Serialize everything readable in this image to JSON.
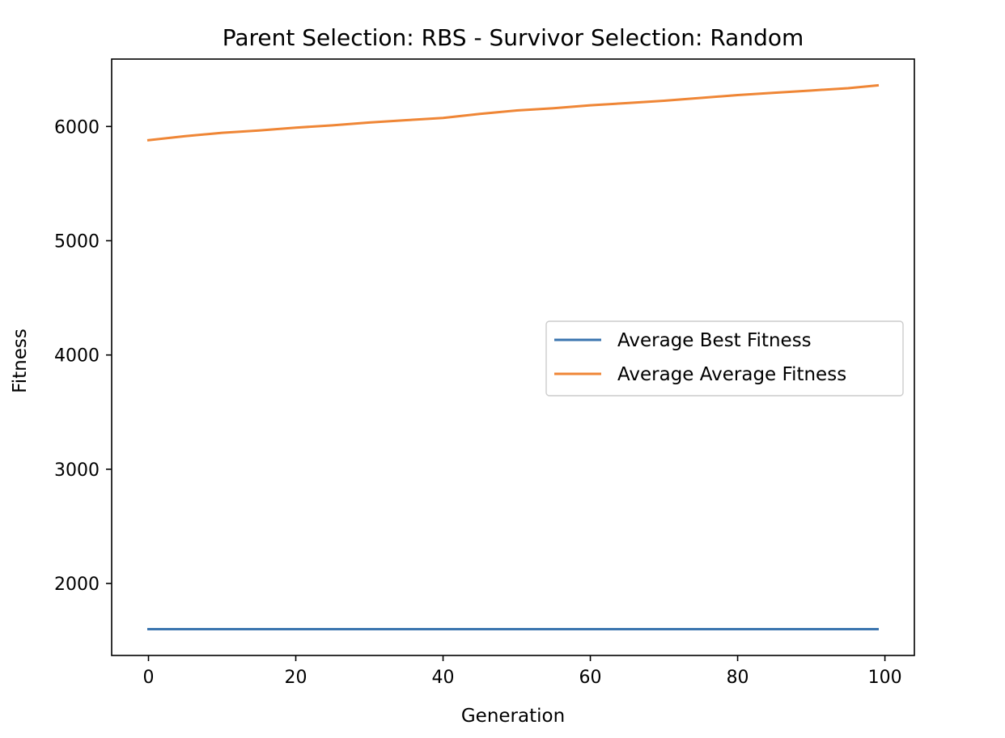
{
  "chart_data": {
    "type": "line",
    "title": "Parent Selection: RBS - Survivor Selection: Random",
    "xlabel": "Generation",
    "ylabel": "Fitness",
    "xlim": [
      -5,
      104
    ],
    "ylim": [
      1370,
      6590
    ],
    "xticks": [
      0,
      20,
      40,
      60,
      80,
      100
    ],
    "yticks": [
      2000,
      3000,
      4000,
      5000,
      6000
    ],
    "xtick_labels": [
      "0",
      "20",
      "40",
      "60",
      "80",
      "100"
    ],
    "ytick_labels": [
      "2000",
      "3000",
      "4000",
      "5000",
      "6000"
    ],
    "grid": false,
    "legend_position": "center-right",
    "series": [
      {
        "name": "Average Best Fitness",
        "color": "#3b75af",
        "x": [
          0,
          99
        ],
        "y": [
          1600,
          1600
        ]
      },
      {
        "name": "Average Average Fitness",
        "color": "#ef8636",
        "x": [
          0,
          5,
          10,
          15,
          20,
          25,
          30,
          35,
          40,
          45,
          50,
          55,
          60,
          65,
          70,
          75,
          80,
          85,
          90,
          95,
          99
        ],
        "y": [
          5880,
          5915,
          5945,
          5965,
          5990,
          6010,
          6035,
          6055,
          6075,
          6110,
          6140,
          6160,
          6185,
          6205,
          6225,
          6250,
          6275,
          6295,
          6315,
          6335,
          6360
        ]
      }
    ]
  }
}
